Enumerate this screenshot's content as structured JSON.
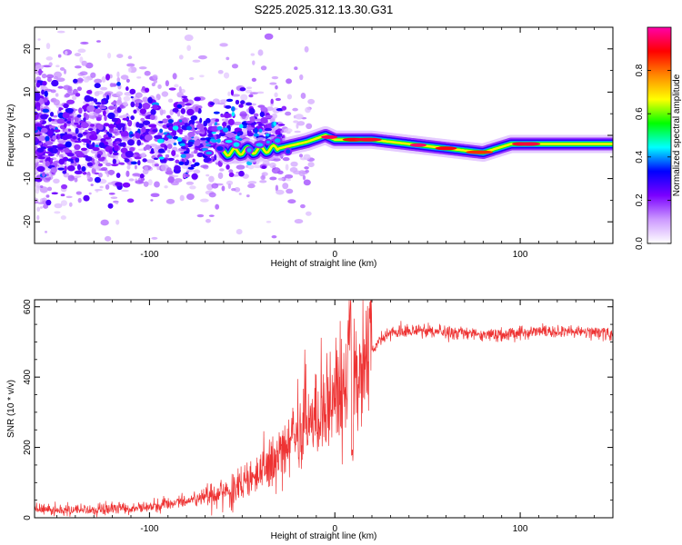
{
  "title": "S225.2025.312.13.30.G31",
  "chart_data": [
    {
      "id": "spectrogram",
      "type": "heatmap",
      "xlabel": "Height of straight line (km)",
      "ylabel": "Frequency (Hz)",
      "xlim": [
        -162,
        150
      ],
      "ylim": [
        -25,
        25
      ],
      "xticks": [
        -100,
        0,
        100
      ],
      "yticks": [
        -20,
        -10,
        0,
        10,
        20
      ],
      "colorbar": {
        "label": "Normalized spectral amplitude",
        "range": [
          0,
          1
        ],
        "ticks": [
          0.0,
          0.2,
          0.4,
          0.6,
          0.8
        ],
        "colors": [
          "#ffffff",
          "#cc99ff",
          "#7a00ff",
          "#0000ff",
          "#00ffff",
          "#00ff00",
          "#ffff00",
          "#ff8800",
          "#ff0000",
          "#ff00aa"
        ]
      },
      "ridge": {
        "description": "strong narrowband signal track",
        "points": [
          {
            "x": -30,
            "y": -3
          },
          {
            "x": -15,
            "y": -1.5
          },
          {
            "x": -5,
            "y": 0
          },
          {
            "x": 0,
            "y": -1
          },
          {
            "x": 10,
            "y": -1
          },
          {
            "x": 20,
            "y": -1
          },
          {
            "x": 40,
            "y": -2
          },
          {
            "x": 60,
            "y": -3
          },
          {
            "x": 80,
            "y": -4
          },
          {
            "x": 95,
            "y": -2
          },
          {
            "x": 110,
            "y": -2
          },
          {
            "x": 130,
            "y": -2
          },
          {
            "x": 150,
            "y": -2
          }
        ]
      }
    },
    {
      "id": "snr",
      "type": "line",
      "xlabel": "Height of straight line (km)",
      "ylabel": "SNR (10 * v/v)",
      "xlim": [
        -162,
        150
      ],
      "ylim": [
        0,
        620
      ],
      "xticks": [
        -100,
        0,
        100
      ],
      "yticks": [
        0,
        200,
        400,
        600
      ],
      "line_color": "#ee3333",
      "series": [
        {
          "name": "SNR",
          "trend": [
            [
              -162,
              25
            ],
            [
              -140,
              20
            ],
            [
              -120,
              25
            ],
            [
              -100,
              30
            ],
            [
              -80,
              50
            ],
            [
              -60,
              70
            ],
            [
              -50,
              90
            ],
            [
              -40,
              130
            ],
            [
              -30,
              180
            ],
            [
              -20,
              230
            ],
            [
              -10,
              290
            ],
            [
              0,
              330
            ],
            [
              5,
              360
            ],
            [
              10,
              390
            ],
            [
              15,
              420
            ],
            [
              20,
              470
            ],
            [
              25,
              510
            ],
            [
              30,
              530
            ],
            [
              50,
              530
            ],
            [
              70,
              525
            ],
            [
              90,
              520
            ],
            [
              110,
              530
            ],
            [
              130,
              530
            ],
            [
              150,
              525
            ]
          ]
        }
      ]
    }
  ]
}
